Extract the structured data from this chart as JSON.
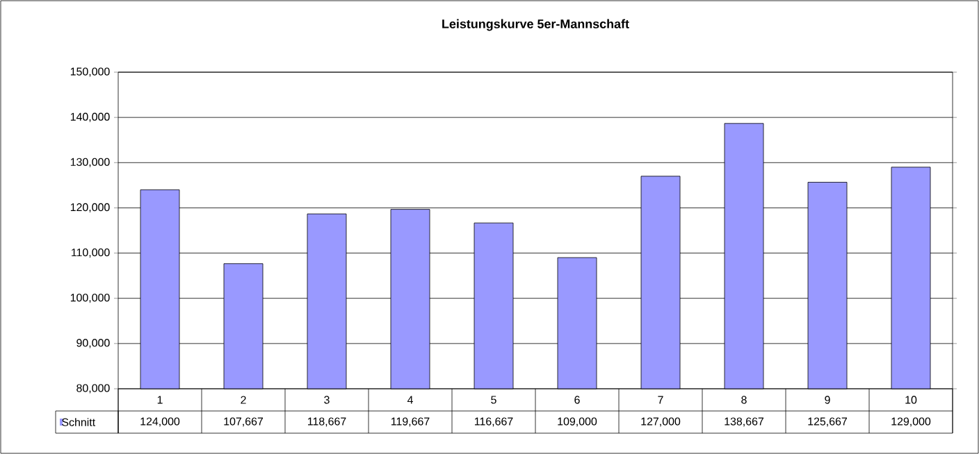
{
  "chart_data": {
    "type": "bar",
    "title": "Leistungskurve 5er-Mannschaft",
    "categories": [
      "1",
      "2",
      "3",
      "4",
      "5",
      "6",
      "7",
      "8",
      "9",
      "10"
    ],
    "series": [
      {
        "name": "Schnitt",
        "color": "#9999ff",
        "values": [
          124000,
          107667,
          118667,
          119667,
          116667,
          109000,
          127000,
          138667,
          125667,
          129000
        ],
        "value_labels": [
          "124,000",
          "107,667",
          "118,667",
          "119,667",
          "116,667",
          "109,000",
          "127,000",
          "138,667",
          "125,667",
          "129,000"
        ]
      }
    ],
    "ylim": [
      80000,
      150000
    ],
    "yticks": [
      {
        "value": 80000,
        "label": "80,000"
      },
      {
        "value": 90000,
        "label": "90,000"
      },
      {
        "value": 100000,
        "label": "100,000"
      },
      {
        "value": 110000,
        "label": "110,000"
      },
      {
        "value": 120000,
        "label": "120,000"
      },
      {
        "value": 130000,
        "label": "130,000"
      },
      {
        "value": 140000,
        "label": "140,000"
      },
      {
        "value": 150000,
        "label": "150,000"
      }
    ],
    "grid": "y"
  }
}
